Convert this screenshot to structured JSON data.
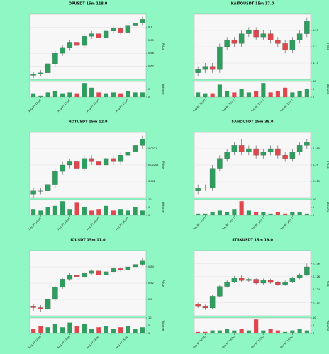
{
  "chart_data": [
    {
      "type": "candlestick",
      "title": "OPUSDT 15m 118.0",
      "ylabel": "Price",
      "vol_label": "Volume",
      "categories": [
        null,
        "Aug 07 12:00",
        null,
        null,
        null,
        "Aug 07 13:00",
        null,
        null,
        null,
        "Aug 07 14:00",
        null,
        null,
        null,
        "Aug 07 15:00",
        null,
        null
      ],
      "open": [
        0.663,
        0.664,
        0.665,
        0.672,
        0.68,
        0.684,
        0.688,
        0.686,
        0.693,
        0.695,
        0.692,
        0.697,
        0.699,
        0.696,
        0.701,
        0.703
      ],
      "high": [
        0.666,
        0.667,
        0.674,
        0.682,
        0.686,
        0.69,
        0.691,
        0.695,
        0.697,
        0.696,
        0.699,
        0.701,
        0.7,
        0.703,
        0.705,
        0.708
      ],
      "low": [
        0.661,
        0.662,
        0.664,
        0.67,
        0.678,
        0.682,
        0.684,
        0.684,
        0.691,
        0.69,
        0.69,
        0.695,
        0.694,
        0.694,
        0.699,
        0.701
      ],
      "close": [
        0.664,
        0.665,
        0.672,
        0.68,
        0.684,
        0.688,
        0.686,
        0.693,
        0.695,
        0.692,
        0.697,
        0.699,
        0.696,
        0.701,
        0.703,
        0.706
      ],
      "volume": [
        2,
        1,
        3,
        4,
        2,
        3,
        2,
        9,
        6,
        3,
        2,
        3,
        2,
        4,
        3,
        3
      ],
      "ylim": [
        0.66,
        0.71
      ],
      "yticks": [
        0.67,
        0.68,
        0.69,
        0.7
      ],
      "vol_ylim": [
        0,
        10
      ],
      "vol_yticks": [
        0,
        5
      ],
      "up_color": "#2e9e5e",
      "down_color": "#e0474c",
      "grid": true
    },
    {
      "type": "candlestick",
      "title": "KAITOUSDT 15m 17.0",
      "ylabel": "Price",
      "vol_label": "Volume",
      "categories": [
        null,
        "Aug 07 12:00",
        null,
        null,
        null,
        "Aug 07 13:00",
        null,
        null,
        null,
        "Aug 07 14:00",
        null,
        null,
        null,
        "Aug 07 15:00",
        null,
        null
      ],
      "open": [
        1.12,
        1.13,
        1.14,
        1.13,
        1.2,
        1.22,
        1.21,
        1.24,
        1.25,
        1.23,
        1.24,
        1.22,
        1.21,
        1.19,
        1.22,
        1.24
      ],
      "high": [
        1.14,
        1.15,
        1.15,
        1.21,
        1.23,
        1.23,
        1.25,
        1.26,
        1.26,
        1.25,
        1.25,
        1.23,
        1.22,
        1.23,
        1.25,
        1.29
      ],
      "low": [
        1.11,
        1.12,
        1.12,
        1.12,
        1.19,
        1.2,
        1.2,
        1.23,
        1.22,
        1.22,
        1.21,
        1.2,
        1.18,
        1.18,
        1.21,
        1.23
      ],
      "close": [
        1.13,
        1.14,
        1.13,
        1.2,
        1.22,
        1.21,
        1.24,
        1.25,
        1.23,
        1.24,
        1.22,
        1.21,
        1.19,
        1.22,
        1.24,
        1.28
      ],
      "volume": [
        3,
        2,
        2,
        8,
        4,
        3,
        5,
        3,
        4,
        9,
        3,
        4,
        6,
        3,
        4,
        5
      ],
      "ylim": [
        1.1,
        1.3
      ],
      "yticks": [
        1.15,
        1.2,
        1.25
      ],
      "vol_ylim": [
        0,
        10
      ],
      "vol_yticks": [
        0,
        5,
        10
      ],
      "up_color": "#2e9e5e",
      "down_color": "#e0474c",
      "grid": true
    },
    {
      "type": "candlestick",
      "title": "NOTUSDT 15m 12.0",
      "ylabel": "Price",
      "vol_label": "Volume",
      "categories": [
        null,
        "Aug 07 12:00",
        null,
        null,
        null,
        "Aug 07 13:00",
        null,
        null,
        null,
        "Aug 07 14:00",
        null,
        null,
        null,
        "Aug 07 15:00",
        null,
        null
      ],
      "open": [
        0.00196,
        0.00197,
        0.00197,
        0.00199,
        0.00203,
        0.00205,
        0.00206,
        0.00204,
        0.00207,
        0.00206,
        0.00205,
        0.00207,
        0.00206,
        0.00208,
        0.00209,
        0.00211
      ],
      "high": [
        0.00198,
        0.00198,
        0.002,
        0.00204,
        0.00206,
        0.00207,
        0.00207,
        0.00208,
        0.00208,
        0.00207,
        0.00208,
        0.00208,
        0.00209,
        0.0021,
        0.00212,
        0.00214
      ],
      "low": [
        0.00195,
        0.00196,
        0.00196,
        0.00198,
        0.00202,
        0.00204,
        0.00203,
        0.00203,
        0.00205,
        0.00204,
        0.00204,
        0.00205,
        0.00205,
        0.00207,
        0.00208,
        0.0021
      ],
      "close": [
        0.00197,
        0.00197,
        0.00199,
        0.00203,
        0.00205,
        0.00206,
        0.00204,
        0.00207,
        0.00206,
        0.00205,
        0.00207,
        0.00206,
        0.00208,
        0.00209,
        0.00211,
        0.00213
      ],
      "volume": [
        4,
        3,
        5,
        6,
        9,
        4,
        8,
        5,
        3,
        4,
        6,
        3,
        4,
        3,
        5,
        3
      ],
      "ylim": [
        0.00195,
        0.00215
      ],
      "yticks": [
        0.002,
        0.00205,
        0.0021
      ],
      "vol_ylim": [
        0,
        10
      ],
      "vol_yticks": [
        0,
        5,
        10
      ],
      "up_color": "#2e9e5e",
      "down_color": "#e0474c",
      "grid": true
    },
    {
      "type": "candlestick",
      "title": "SANDUSDT 15m 38.0",
      "ylabel": "Price",
      "vol_label": "Volume",
      "categories": [
        null,
        "Aug 07 12:00",
        null,
        null,
        null,
        "Aug 07 13:00",
        null,
        null,
        null,
        "Aug 07 14:00",
        null,
        null,
        null,
        "Aug 07 15:00",
        null,
        null
      ],
      "open": [
        0.282,
        0.283,
        0.283,
        0.289,
        0.292,
        0.294,
        0.296,
        0.294,
        0.295,
        0.293,
        0.294,
        0.295,
        0.293,
        0.292,
        0.294,
        0.296
      ],
      "high": [
        0.284,
        0.284,
        0.29,
        0.293,
        0.295,
        0.297,
        0.298,
        0.296,
        0.296,
        0.295,
        0.296,
        0.296,
        0.294,
        0.295,
        0.297,
        0.298
      ],
      "low": [
        0.281,
        0.282,
        0.282,
        0.288,
        0.291,
        0.293,
        0.293,
        0.293,
        0.292,
        0.292,
        0.293,
        0.292,
        0.291,
        0.291,
        0.293,
        0.295
      ],
      "close": [
        0.283,
        0.283,
        0.289,
        0.292,
        0.294,
        0.296,
        0.294,
        0.295,
        0.293,
        0.294,
        0.295,
        0.293,
        0.292,
        0.294,
        0.296,
        0.297
      ],
      "volume": [
        1,
        1,
        2,
        3,
        2,
        4,
        9,
        3,
        2,
        2,
        1,
        2,
        1,
        2,
        2,
        1
      ],
      "ylim": [
        0.28,
        0.3
      ],
      "yticks": [
        0.285,
        0.29,
        0.295
      ],
      "vol_ylim": [
        0,
        10
      ],
      "vol_yticks": [
        0,
        5,
        10
      ],
      "up_color": "#2e9e5e",
      "down_color": "#e0474c",
      "grid": true
    },
    {
      "type": "candlestick",
      "title": "IOUSDT 15m 11.0",
      "ylabel": "Price",
      "vol_label": "Volume",
      "categories": [
        null,
        "Aug 07 12:00",
        null,
        null,
        null,
        "Aug 07 13:00",
        null,
        null,
        null,
        "Aug 07 14:00",
        null,
        null,
        null,
        "Aug 07 15:00",
        null,
        null
      ],
      "open": [
        0.792,
        0.79,
        0.788,
        0.8,
        0.815,
        0.825,
        0.83,
        0.828,
        0.832,
        0.835,
        0.83,
        0.834,
        0.838,
        0.836,
        0.84,
        0.843
      ],
      "high": [
        0.794,
        0.793,
        0.802,
        0.817,
        0.827,
        0.833,
        0.834,
        0.834,
        0.837,
        0.837,
        0.836,
        0.84,
        0.84,
        0.842,
        0.845,
        0.851
      ],
      "low": [
        0.786,
        0.785,
        0.786,
        0.798,
        0.813,
        0.823,
        0.825,
        0.826,
        0.83,
        0.828,
        0.828,
        0.832,
        0.834,
        0.834,
        0.838,
        0.841
      ],
      "close": [
        0.79,
        0.788,
        0.8,
        0.815,
        0.825,
        0.83,
        0.828,
        0.832,
        0.835,
        0.83,
        0.834,
        0.838,
        0.836,
        0.84,
        0.843,
        0.848
      ],
      "volume": [
        3,
        5,
        4,
        6,
        4,
        7,
        5,
        6,
        3,
        4,
        5,
        3,
        4,
        5,
        3,
        4
      ],
      "ylim": [
        0.78,
        0.86
      ],
      "yticks": [
        0.8,
        0.82,
        0.84
      ],
      "vol_ylim": [
        0,
        10
      ],
      "vol_yticks": [
        0,
        5,
        10
      ],
      "up_color": "#2e9e5e",
      "down_color": "#e0474c",
      "grid": true
    },
    {
      "type": "candlestick",
      "title": "STRKUSDT 15m 19.0",
      "ylabel": "Price",
      "vol_label": "Volume",
      "categories": [
        null,
        "Aug 07 12:00",
        null,
        null,
        null,
        "Aug 07 13:00",
        null,
        null,
        null,
        "Aug 07 14:00",
        null,
        null,
        null,
        "Aug 07 15:00",
        null,
        null
      ],
      "open": [
        0.1218,
        0.1215,
        0.1212,
        0.123,
        0.1245,
        0.1252,
        0.1258,
        0.1254,
        0.1256,
        0.125,
        0.1255,
        0.1251,
        0.1248,
        0.1252,
        0.1258,
        0.1263
      ],
      "high": [
        0.122,
        0.1217,
        0.1232,
        0.1247,
        0.1255,
        0.1261,
        0.1262,
        0.1259,
        0.1258,
        0.1257,
        0.1257,
        0.1253,
        0.1254,
        0.126,
        0.1265,
        0.128
      ],
      "low": [
        0.1212,
        0.1209,
        0.121,
        0.1228,
        0.1243,
        0.125,
        0.1252,
        0.1252,
        0.1248,
        0.1248,
        0.1249,
        0.1246,
        0.1246,
        0.125,
        0.1256,
        0.1261
      ],
      "close": [
        0.1215,
        0.1212,
        0.123,
        0.1245,
        0.1252,
        0.1258,
        0.1254,
        0.1256,
        0.125,
        0.1255,
        0.1251,
        0.1248,
        0.1252,
        0.1258,
        0.1263,
        0.1275
      ],
      "volume": [
        1,
        1,
        2,
        2,
        3,
        2,
        3,
        2,
        9,
        2,
        3,
        2,
        1,
        2,
        3,
        2
      ],
      "ylim": [
        0.12,
        0.13
      ],
      "yticks": [
        0.122,
        0.124,
        0.126,
        0.128
      ],
      "vol_ylim": [
        0,
        10
      ],
      "vol_yticks": [
        0,
        5,
        10
      ],
      "up_color": "#2e9e5e",
      "down_color": "#e0474c",
      "grid": true
    }
  ]
}
